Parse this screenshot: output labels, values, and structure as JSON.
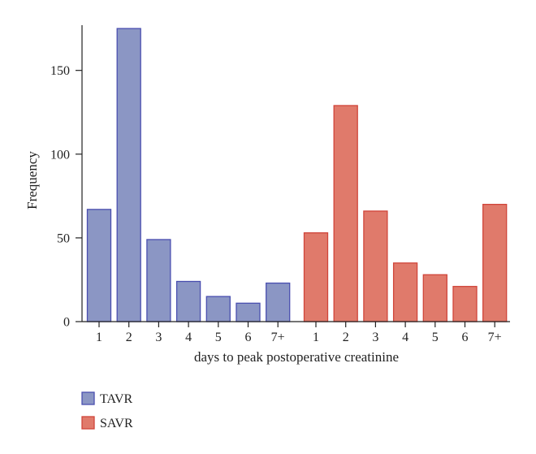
{
  "chart_data": {
    "type": "bar",
    "xlabel": "days to peak postoperative creatinine",
    "ylabel": "Frequency",
    "ylim": [
      0,
      177
    ],
    "yticks": [
      0,
      50,
      100,
      150
    ],
    "groups": [
      {
        "name": "TAVR",
        "color": "#8b96c4",
        "stroke": "#4a4fb0",
        "categories": [
          "1",
          "2",
          "3",
          "4",
          "5",
          "6",
          "7+"
        ],
        "values": [
          67,
          175,
          49,
          24,
          15,
          11,
          23
        ]
      },
      {
        "name": "SAVR",
        "color": "#e07a6b",
        "stroke": "#d0453a",
        "categories": [
          "1",
          "2",
          "3",
          "4",
          "5",
          "6",
          "7+"
        ],
        "values": [
          53,
          129,
          66,
          35,
          28,
          21,
          70
        ]
      }
    ],
    "legend": {
      "position": "bottom-left",
      "entries": [
        "TAVR",
        "SAVR"
      ]
    },
    "grid": false
  }
}
